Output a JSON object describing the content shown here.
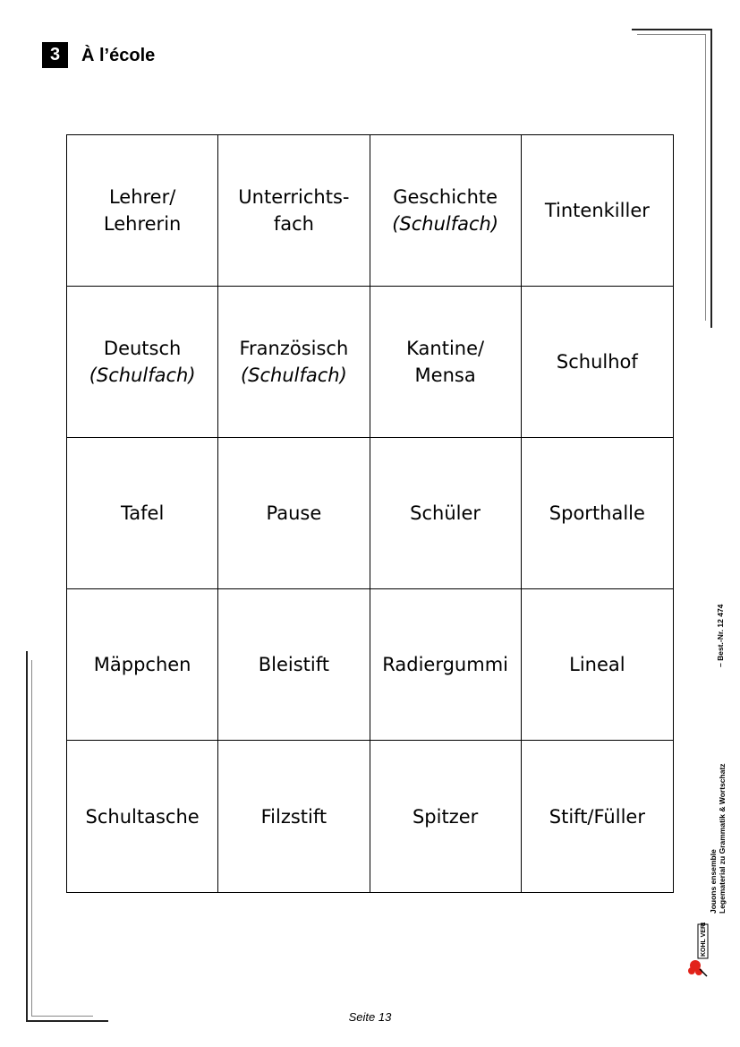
{
  "header": {
    "number": "3",
    "title": "À l’école"
  },
  "cards": [
    {
      "lines": [
        "Lehrer/",
        "Lehrerin"
      ],
      "sub": ""
    },
    {
      "lines": [
        "Unterrichts-",
        "fach"
      ],
      "sub": ""
    },
    {
      "lines": [
        "Geschichte"
      ],
      "sub": "(Schulfach)"
    },
    {
      "lines": [
        "Tintenkiller"
      ],
      "sub": ""
    },
    {
      "lines": [
        "Deutsch"
      ],
      "sub": "(Schulfach)"
    },
    {
      "lines": [
        "Französisch"
      ],
      "sub": "(Schulfach)"
    },
    {
      "lines": [
        "Kantine/",
        "Mensa"
      ],
      "sub": ""
    },
    {
      "lines": [
        "Schulhof"
      ],
      "sub": ""
    },
    {
      "lines": [
        "Tafel"
      ],
      "sub": ""
    },
    {
      "lines": [
        "Pause"
      ],
      "sub": ""
    },
    {
      "lines": [
        "Schüler"
      ],
      "sub": ""
    },
    {
      "lines": [
        "Sporthalle"
      ],
      "sub": ""
    },
    {
      "lines": [
        "Mäppchen"
      ],
      "sub": ""
    },
    {
      "lines": [
        "Bleistift"
      ],
      "sub": ""
    },
    {
      "lines": [
        "Radiergummi"
      ],
      "sub": ""
    },
    {
      "lines": [
        "Lineal"
      ],
      "sub": ""
    },
    {
      "lines": [
        "Schultasche"
      ],
      "sub": ""
    },
    {
      "lines": [
        "Filzstift"
      ],
      "sub": ""
    },
    {
      "lines": [
        "Spitzer"
      ],
      "sub": ""
    },
    {
      "lines": [
        "Stift/Füller"
      ],
      "sub": ""
    }
  ],
  "side_text": {
    "line1": "Jouons ensemble",
    "line2": "Legematerial zu Grammatik & Wortschatz",
    "order": "–   Best.-Nr. 12 474"
  },
  "publisher": "KOHL VERLAG",
  "footer": {
    "page": "Seite 13"
  },
  "colors": {
    "badge": "#000000",
    "logo_red": "#e2231a"
  }
}
